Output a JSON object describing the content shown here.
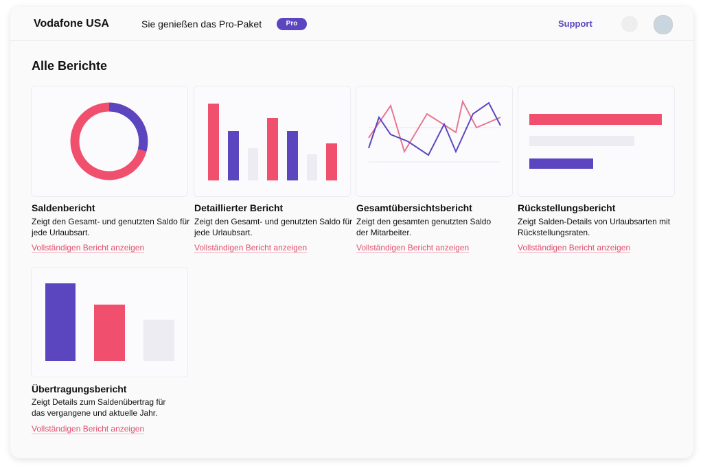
{
  "header": {
    "brand": "Vodafone USA",
    "plan": "Sie genießen das Pro-Paket",
    "badge": "Pro",
    "support": "Support"
  },
  "section": {
    "title": "Alle Berichte"
  },
  "reports": [
    {
      "title": "Saldenbericht",
      "description": "Zeigt den Gesamt- und genutzten Saldo für jede Urlaubsart.",
      "link": "Vollständigen Bericht anzeigen"
    },
    {
      "title": "Detaillierter Bericht",
      "description": "Zeigt den Gesamt- und genutzten Saldo für jede Urlaubsart.",
      "link": "Vollständigen Bericht anzeigen"
    },
    {
      "title": "Gesamtübersichtsbericht",
      "description": "Zeigt den gesamten genutzten Saldo der Mitarbeiter.",
      "link": "Vollständigen Bericht anzeigen"
    },
    {
      "title": "Rückstellungsbericht",
      "description": "Zeigt Salden-Details von Urlaubsarten mit Rückstellungsraten.",
      "link": "Vollständigen Bericht anzeigen"
    },
    {
      "title": "Übertragungsbericht",
      "description": "Zeigt Details zum Saldenübertrag für das vergangene und aktuelle Jahr.",
      "link": "Vollständigen Bericht anzeigen"
    }
  ]
}
